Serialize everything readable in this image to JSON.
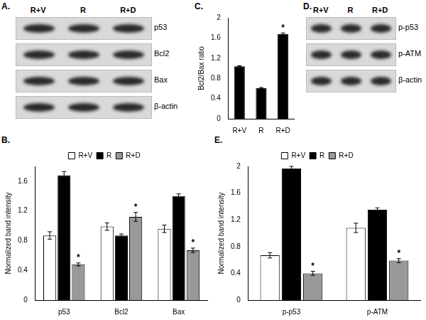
{
  "blots": [
    {
      "label": "A.",
      "lanes": [
        "R+V",
        "R",
        "R+D"
      ],
      "rows": [
        "p53",
        "Bcl2",
        "Bax",
        "β-actin"
      ]
    },
    {
      "label": "D.",
      "lanes": [
        "R+V",
        "R",
        "R+D"
      ],
      "rows": [
        "p-p53",
        "p-ATM",
        "β-actin"
      ]
    }
  ],
  "chart_data": [
    {
      "label": "B.",
      "type": "bar",
      "categories": [
        "p53",
        "Bcl2",
        "Bax"
      ],
      "series": [
        {
          "name": "R+V",
          "color": "#ffffff",
          "values": [
            0.87,
            0.99,
            0.96
          ],
          "errors": [
            0.05,
            0.05,
            0.05
          ]
        },
        {
          "name": "R",
          "color": "#000000",
          "values": [
            1.68,
            0.87,
            1.4
          ],
          "errors": [
            0.05,
            0.02,
            0.03
          ]
        },
        {
          "name": "R+D",
          "color": "#999999",
          "values": [
            0.48,
            1.12,
            0.67
          ],
          "errors": [
            0.02,
            0.06,
            0.03
          ]
        }
      ],
      "ylabel": "Normalized band intensity",
      "ylim": [
        0,
        1.8
      ],
      "yticks": [
        0,
        0.4,
        0.8,
        1.2,
        1.6
      ],
      "grid": false,
      "legend": "top",
      "annotations": [
        {
          "category": "p53",
          "series": "R+D",
          "text": "*"
        },
        {
          "category": "Bcl2",
          "series": "R+D",
          "text": "*"
        },
        {
          "category": "Bax",
          "series": "R+D",
          "text": "*"
        }
      ]
    },
    {
      "label": "C.",
      "type": "bar",
      "categories": [
        "R+V",
        "R",
        "R+D"
      ],
      "values": [
        1.04,
        0.61,
        1.68
      ],
      "errors": [
        0.01,
        0.01,
        0.02
      ],
      "color": "#000000",
      "ylabel": "Bcl2/Bax ratio",
      "ylim": [
        0,
        2
      ],
      "yticks": [
        0,
        0.4,
        0.8,
        1.2,
        1.6,
        2
      ],
      "grid": false,
      "annotations": [
        {
          "category": "R+D",
          "text": "*"
        }
      ]
    },
    {
      "label": "E.",
      "type": "bar",
      "categories": [
        "p-p53",
        "p-ATM"
      ],
      "series": [
        {
          "name": "R+V",
          "color": "#ffffff",
          "values": [
            0.67,
            1.08
          ],
          "errors": [
            0.04,
            0.07
          ]
        },
        {
          "name": "R",
          "color": "#000000",
          "values": [
            1.97,
            1.35
          ],
          "errors": [
            0.03,
            0.03
          ]
        },
        {
          "name": "R+D",
          "color": "#999999",
          "values": [
            0.4,
            0.59
          ],
          "errors": [
            0.03,
            0.03
          ]
        }
      ],
      "ylabel": "Normalized band intensity",
      "ylim": [
        0,
        2
      ],
      "yticks": [
        0,
        0.4,
        0.8,
        1.2,
        1.6,
        2
      ],
      "grid": false,
      "legend": "top",
      "annotations": [
        {
          "category": "p-p53",
          "series": "R+D",
          "text": "*"
        },
        {
          "category": "p-ATM",
          "series": "R+D",
          "text": "*"
        }
      ]
    }
  ]
}
